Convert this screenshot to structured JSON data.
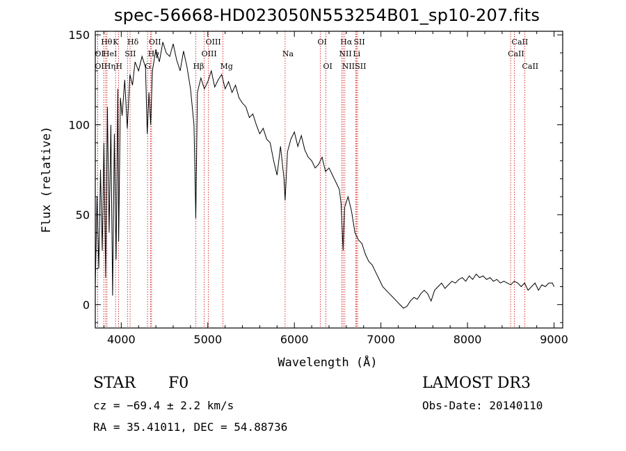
{
  "header": {
    "title": "spec-56668-HD023050N553254B01_sp10-207.fits"
  },
  "info": {
    "object_class": "STAR",
    "subclass": "F0",
    "survey": "LAMOST DR3",
    "cz": "cz = −69.4 ± 2.2 km/s",
    "obs_date": "Obs-Date: 20140110",
    "coords": "RA =  35.41011, DEC =  54.88736"
  },
  "chart_data": {
    "type": "line",
    "title": "spec-56668-HD023050N553254B01_sp10-207.fits",
    "xlabel": "Wavelength (Å)",
    "ylabel": "Flux (relative)",
    "xlim": [
      3700,
      9100
    ],
    "ylim": [
      -13,
      152
    ],
    "xticks": [
      4000,
      5000,
      6000,
      7000,
      8000,
      9000
    ],
    "yticks": [
      0,
      50,
      100,
      150
    ],
    "grid": false,
    "line_color": "#000000",
    "marker_color": "#cc0000",
    "series": [
      {
        "x": [
          3700,
          3720,
          3740,
          3760,
          3780,
          3800,
          3820,
          3840,
          3860,
          3880,
          3900,
          3920,
          3940,
          3960,
          3970,
          3990,
          4010,
          4040,
          4070,
          4100,
          4130,
          4160,
          4200,
          4240,
          4280,
          4300,
          4320,
          4340,
          4360,
          4400,
          4440,
          4480,
          4520,
          4560,
          4600,
          4640,
          4680,
          4720,
          4760,
          4800,
          4840,
          4861,
          4880,
          4920,
          4960,
          5000,
          5040,
          5080,
          5120,
          5160,
          5200,
          5240,
          5280,
          5320,
          5360,
          5400,
          5440,
          5480,
          5520,
          5560,
          5600,
          5640,
          5680,
          5720,
          5760,
          5800,
          5840,
          5880,
          5893,
          5920,
          5960,
          6000,
          6040,
          6080,
          6120,
          6160,
          6200,
          6240,
          6280,
          6320,
          6360,
          6400,
          6440,
          6480,
          6520,
          6540,
          6563,
          6580,
          6620,
          6660,
          6700,
          6740,
          6780,
          6820,
          6860,
          6900,
          6940,
          6980,
          7020,
          7060,
          7100,
          7140,
          7180,
          7220,
          7260,
          7300,
          7340,
          7380,
          7420,
          7460,
          7500,
          7540,
          7580,
          7620,
          7660,
          7700,
          7740,
          7780,
          7820,
          7860,
          7900,
          7940,
          7980,
          8020,
          8060,
          8100,
          8140,
          8180,
          8220,
          8260,
          8300,
          8340,
          8380,
          8420,
          8460,
          8500,
          8540,
          8580,
          8620,
          8660,
          8700,
          8740,
          8780,
          8820,
          8860,
          8900,
          8940,
          8980,
          9000
        ],
        "y": [
          10,
          60,
          20,
          75,
          30,
          90,
          15,
          110,
          40,
          100,
          5,
          95,
          25,
          120,
          35,
          115,
          105,
          125,
          98,
          128,
          122,
          135,
          130,
          138,
          132,
          95,
          118,
          100,
          130,
          142,
          135,
          146,
          140,
          138,
          145,
          136,
          130,
          141,
          132,
          120,
          100,
          48,
          118,
          126,
          120,
          124,
          130,
          121,
          125,
          128,
          120,
          124,
          118,
          122,
          115,
          112,
          110,
          104,
          106,
          100,
          95,
          98,
          92,
          90,
          80,
          72,
          88,
          70,
          58,
          85,
          92,
          96,
          88,
          94,
          86,
          82,
          80,
          76,
          78,
          82,
          74,
          76,
          72,
          68,
          64,
          56,
          30,
          54,
          60,
          52,
          40,
          36,
          34,
          28,
          24,
          22,
          18,
          14,
          10,
          8,
          6,
          4,
          2,
          0,
          -2,
          -1,
          2,
          4,
          3,
          6,
          8,
          6,
          2,
          8,
          10,
          12,
          9,
          11,
          13,
          12,
          14,
          15,
          13,
          16,
          14,
          17,
          15,
          16,
          14,
          15,
          13,
          14,
          12,
          13,
          12,
          11,
          13,
          12,
          10,
          12,
          8,
          10,
          12,
          8,
          11,
          10,
          12,
          12,
          10
        ]
      }
    ],
    "line_markers": [
      {
        "label": "Hθ",
        "wl": 3798,
        "row": 0
      },
      {
        "label": "K",
        "wl": 3934,
        "row": 0
      },
      {
        "label": "Hδ",
        "wl": 4102,
        "row": 0
      },
      {
        "label": "OII",
        "wl": 4350,
        "row": 0
      },
      {
        "label": "OIII",
        "wl": 5007,
        "row": 0
      },
      {
        "label": "OI",
        "wl": 6300,
        "row": 0
      },
      {
        "label": "Hα",
        "wl": 6563,
        "row": 0
      },
      {
        "label": "SII",
        "wl": 6717,
        "row": 0
      },
      {
        "label": "CaII",
        "wl": 8542,
        "row": 0
      },
      {
        "label": "OI",
        "wl": 3727,
        "row": 1
      },
      {
        "label": "HeI",
        "wl": 3820,
        "row": 1
      },
      {
        "label": "SII",
        "wl": 4072,
        "row": 1
      },
      {
        "label": "Hγ",
        "wl": 4340,
        "row": 1
      },
      {
        "label": "OIII",
        "wl": 4959,
        "row": 1
      },
      {
        "label": "Na",
        "wl": 5893,
        "row": 1
      },
      {
        "label": "NII",
        "wl": 6548,
        "row": 1
      },
      {
        "label": "Li",
        "wl": 6708,
        "row": 1
      },
      {
        "label": "CaII",
        "wl": 8498,
        "row": 1
      },
      {
        "label": "OII",
        "wl": 3727,
        "row": 2
      },
      {
        "label": "Hη",
        "wl": 3835,
        "row": 2
      },
      {
        "label": "H",
        "wl": 3968,
        "row": 2
      },
      {
        "label": "G",
        "wl": 4304,
        "row": 2
      },
      {
        "label": "Hβ",
        "wl": 4861,
        "row": 2
      },
      {
        "label": "Mg",
        "wl": 5175,
        "row": 2
      },
      {
        "label": "OI",
        "wl": 6364,
        "row": 2
      },
      {
        "label": "NII",
        "wl": 6583,
        "row": 2
      },
      {
        "label": "SII",
        "wl": 6731,
        "row": 2
      },
      {
        "label": "CaII",
        "wl": 8662,
        "row": 2
      }
    ]
  }
}
